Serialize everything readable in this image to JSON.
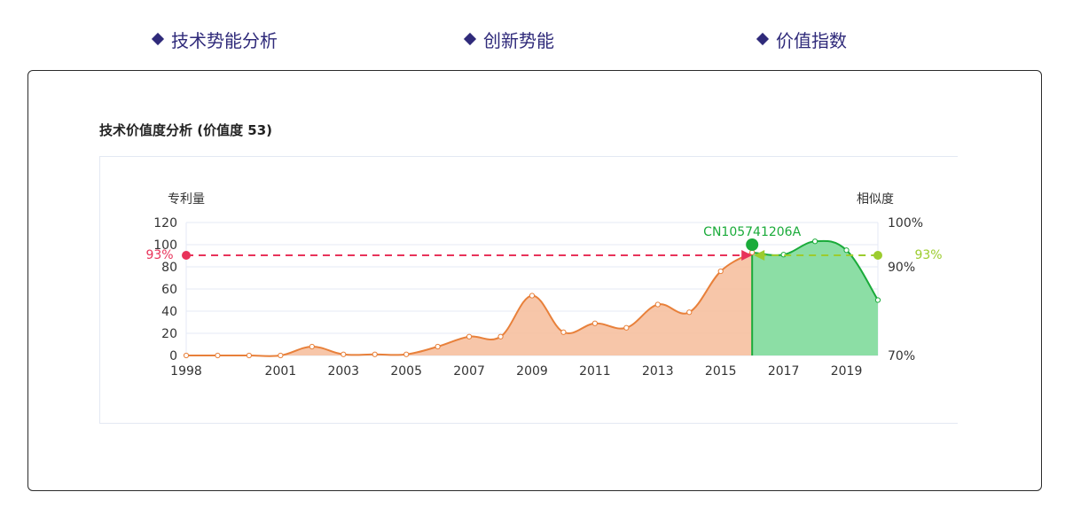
{
  "tabs": [
    {
      "label": "技术势能分析"
    },
    {
      "label": "创新势能"
    },
    {
      "label": "价值指数"
    }
  ],
  "chart_title": "技术价值度分析 (价值度 53)",
  "chart_data": {
    "type": "area",
    "y_left_label": "专利量",
    "y_right_label": "相似度",
    "y_left_ticks": [
      "0",
      "20",
      "40",
      "60",
      "80",
      "100",
      "120"
    ],
    "y_right_ticks": [
      "70%",
      "90%",
      "100%"
    ],
    "x_ticks": [
      "1998",
      "2001",
      "2003",
      "2005",
      "2007",
      "2009",
      "2011",
      "2013",
      "2015",
      "2017",
      "2019"
    ],
    "ylim_left": [
      0,
      120
    ],
    "split_year": 2016,
    "series_left": {
      "x": [
        1998,
        1999,
        2000,
        2001,
        2002,
        2003,
        2004,
        2005,
        2006,
        2007,
        2008,
        2009,
        2010,
        2011,
        2012,
        2013,
        2014,
        2015,
        2016
      ],
      "values": [
        0,
        0,
        0,
        0,
        8,
        1,
        1,
        1,
        8,
        17,
        17,
        54,
        21,
        29,
        25,
        46,
        39,
        76,
        93
      ],
      "color": "#e8803a",
      "fill": "#f6c0a0"
    },
    "series_right": {
      "x": [
        2016,
        2017,
        2018,
        2019,
        2020
      ],
      "values": [
        93,
        91,
        103,
        95,
        50
      ],
      "color": "#1aab3a",
      "fill": "#86dca0"
    },
    "markers": {
      "left_pct": "93%",
      "right_pct": "93%",
      "patent_label": "CN105741206A",
      "left_color": "#e8335a",
      "right_color": "#9ccc2e",
      "patent_color": "#1aab3a"
    }
  }
}
